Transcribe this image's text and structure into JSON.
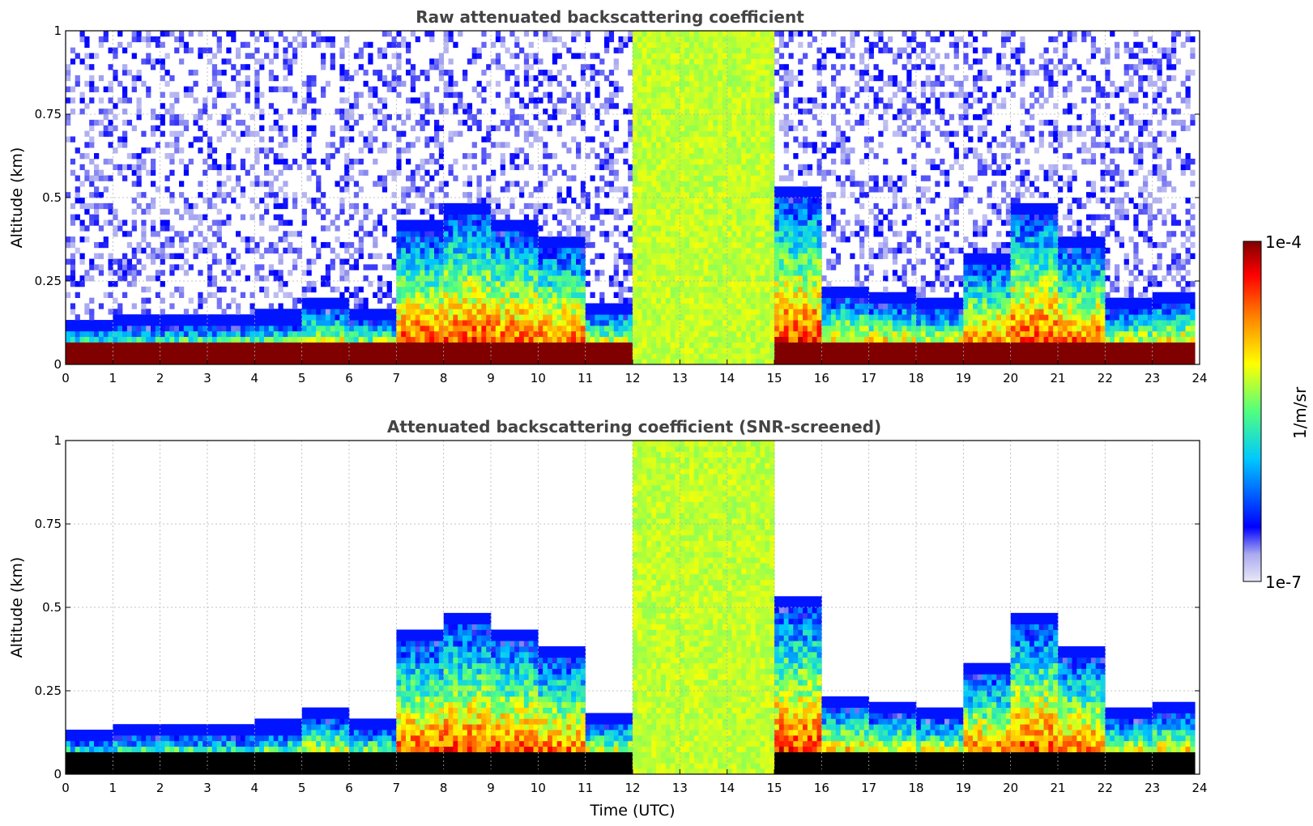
{
  "chart_data": [
    {
      "type": "heatmap",
      "title": "Raw attenuated backscattering coefficient",
      "ylabel": "Altitude (km)",
      "xlim": [
        0,
        24
      ],
      "ylim": [
        0,
        1
      ],
      "xticks": [
        "0",
        "1",
        "2",
        "3",
        "4",
        "5",
        "6",
        "7",
        "8",
        "9",
        "10",
        "11",
        "12",
        "13",
        "14",
        "15",
        "16",
        "17",
        "18",
        "19",
        "20",
        "21",
        "22",
        "23",
        "24"
      ],
      "yticks": [
        "0",
        "0.25",
        "0.5",
        "0.75",
        "1"
      ],
      "grid": true,
      "screened": false,
      "cloud_base_km": [
        0.1,
        0.11,
        0.11,
        0.11,
        0.12,
        0.16,
        0.13,
        0.4,
        0.45,
        0.4,
        0.35,
        0.15,
        1.0,
        1.0,
        1.0,
        0.5,
        0.2,
        0.18,
        0.16,
        0.3,
        0.45,
        0.35,
        0.16,
        0.18
      ]
    },
    {
      "type": "heatmap",
      "title": "Attenuated backscattering coefficient (SNR-screened)",
      "xlabel": "Time (UTC)",
      "ylabel": "Altitude (km)",
      "xlim": [
        0,
        24
      ],
      "ylim": [
        0,
        1
      ],
      "xticks": [
        "0",
        "1",
        "2",
        "3",
        "4",
        "5",
        "6",
        "7",
        "8",
        "9",
        "10",
        "11",
        "12",
        "13",
        "14",
        "15",
        "16",
        "17",
        "18",
        "19",
        "20",
        "21",
        "22",
        "23",
        "24"
      ],
      "yticks": [
        "0",
        "0.25",
        "0.5",
        "0.75",
        "1"
      ],
      "grid": true,
      "screened": true,
      "cloud_base_km": [
        0.1,
        0.11,
        0.11,
        0.11,
        0.12,
        0.16,
        0.13,
        0.4,
        0.45,
        0.4,
        0.35,
        0.15,
        1.0,
        1.0,
        1.0,
        0.5,
        0.2,
        0.18,
        0.16,
        0.3,
        0.45,
        0.35,
        0.16,
        0.18
      ]
    }
  ],
  "colorbar": {
    "label": "1/m/sr",
    "max_label": "1e-4",
    "min_label": "1e-7",
    "range": [
      1e-07,
      0.0001
    ],
    "colormap": "jet",
    "colors": [
      "#e8e8f8",
      "#0000ff",
      "#00c8ff",
      "#50ff80",
      "#ffff00",
      "#ff8000",
      "#ff0000",
      "#800000"
    ]
  }
}
